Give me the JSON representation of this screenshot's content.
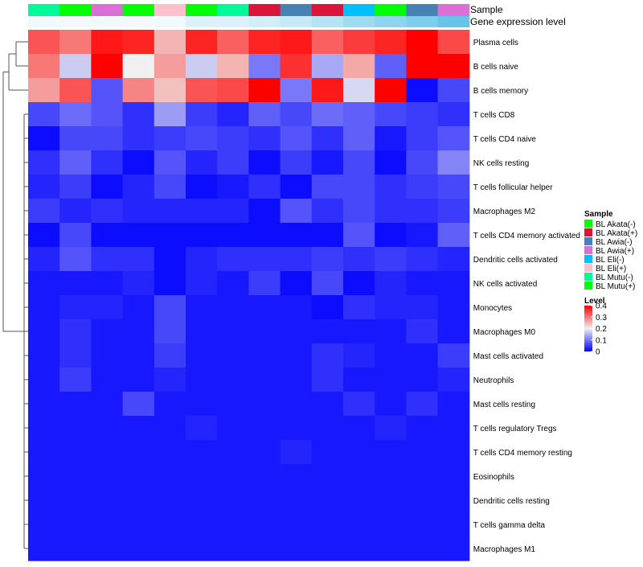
{
  "chart_data": {
    "type": "heatmap",
    "annotation_labels": [
      "Sample",
      "Gene expression level"
    ],
    "rows": [
      "Plasma cells",
      "B cells naive",
      "B cells memory",
      "T cells CD8",
      "T cells CD4 naive",
      "NK cells resting",
      "T cells follicular helper",
      "Macrophages M2",
      "T cells CD4 memory activated",
      "Dendritic cells activated",
      "NK cells activated",
      "Monocytes",
      "Macrophages M0",
      "Mast cells activated",
      "Neutrophils",
      "Mast cells resting",
      "T cells regulatory  Tregs",
      "T cells CD4 memory resting",
      "Eosinophils",
      "Dendritic cells resting",
      "T cells gamma delta",
      "Macrophages M1"
    ],
    "column_samples": [
      "BL Mutu(-)",
      "BL Akata(-)",
      "BL Awia(+)",
      "BL Mutu(+)",
      "BL Eli(+)",
      "BL Akata(-)",
      "BL Mutu(-)",
      "BL Akata(+)",
      "BL Awia(-)",
      "BL Akata(+)",
      "BL Eli(-)",
      "BL Mutu(+)",
      "BL Awia(-)",
      "BL Awia(+)"
    ],
    "gene_expression_level_colors": [
      "#f2f9fc",
      "#f2f9fc",
      "#f2f9fc",
      "#f2f9fc",
      "#f2f9fc",
      "#dcf1f9",
      "#dcf1f9",
      "#d2eef8",
      "#c5e9f6",
      "#b5e3f4",
      "#9fdaf1",
      "#8fd4ef",
      "#7dcdec",
      "#66c4e9"
    ],
    "values": [
      [
        0.33,
        0.3,
        0.38,
        0.37,
        0.25,
        0.37,
        0.32,
        0.37,
        0.38,
        0.32,
        0.35,
        0.37,
        0.4,
        0.34
      ],
      [
        0.3,
        0.17,
        0.4,
        0.2,
        0.27,
        0.17,
        0.25,
        0.1,
        0.36,
        0.14,
        0.26,
        0.08,
        0.4,
        0.4
      ],
      [
        0.27,
        0.33,
        0.07,
        0.29,
        0.24,
        0.33,
        0.34,
        0.4,
        0.1,
        0.38,
        0.18,
        0.4,
        0.01,
        0.06
      ],
      [
        0.06,
        0.09,
        0.07,
        0.04,
        0.13,
        0.05,
        0.03,
        0.08,
        0.06,
        0.09,
        0.08,
        0.06,
        0.05,
        0.04
      ],
      [
        0.01,
        0.06,
        0.06,
        0.04,
        0.05,
        0.06,
        0.05,
        0.04,
        0.07,
        0.04,
        0.08,
        0.02,
        0.05,
        0.07
      ],
      [
        0.04,
        0.08,
        0.04,
        0.01,
        0.07,
        0.03,
        0.05,
        0.01,
        0.05,
        0.02,
        0.06,
        0.01,
        0.06,
        0.11
      ],
      [
        0.03,
        0.05,
        0.01,
        0.03,
        0.06,
        0.01,
        0.02,
        0.04,
        0.01,
        0.06,
        0.06,
        0.04,
        0.05,
        0.06
      ],
      [
        0.05,
        0.03,
        0.04,
        0.03,
        0.03,
        0.03,
        0.03,
        0.01,
        0.07,
        0.04,
        0.06,
        0.04,
        0.04,
        0.05
      ],
      [
        0.01,
        0.06,
        0.01,
        0.01,
        0.01,
        0.01,
        0.01,
        0.01,
        0.01,
        0.01,
        0.07,
        0.01,
        0.02,
        0.08
      ],
      [
        0.03,
        0.07,
        0.04,
        0.04,
        0.01,
        0.03,
        0.04,
        0.04,
        0.04,
        0.05,
        0.04,
        0.05,
        0.04,
        0.03
      ],
      [
        0.02,
        0.02,
        0.02,
        0.03,
        0.01,
        0.03,
        0.02,
        0.05,
        0.01,
        0.06,
        0.01,
        0.03,
        0.02,
        0.02
      ],
      [
        0.02,
        0.03,
        0.03,
        0.02,
        0.06,
        0.02,
        0.02,
        0.02,
        0.02,
        0.01,
        0.04,
        0.03,
        0.03,
        0.02
      ],
      [
        0.02,
        0.04,
        0.02,
        0.02,
        0.06,
        0.02,
        0.02,
        0.02,
        0.02,
        0.02,
        0.02,
        0.02,
        0.04,
        0.02
      ],
      [
        0.02,
        0.04,
        0.02,
        0.02,
        0.05,
        0.02,
        0.02,
        0.02,
        0.02,
        0.04,
        0.03,
        0.02,
        0.02,
        0.05
      ],
      [
        0.02,
        0.05,
        0.02,
        0.02,
        0.03,
        0.02,
        0.02,
        0.02,
        0.02,
        0.04,
        0.02,
        0.02,
        0.02,
        0.03
      ],
      [
        0.02,
        0.02,
        0.02,
        0.06,
        0.02,
        0.02,
        0.02,
        0.02,
        0.02,
        0.02,
        0.04,
        0.02,
        0.04,
        0.02
      ],
      [
        0.02,
        0.02,
        0.02,
        0.02,
        0.02,
        0.03,
        0.02,
        0.02,
        0.02,
        0.02,
        0.02,
        0.03,
        0.02,
        0.02
      ],
      [
        0.02,
        0.02,
        0.02,
        0.02,
        0.02,
        0.02,
        0.02,
        0.02,
        0.03,
        0.02,
        0.02,
        0.02,
        0.02,
        0.02
      ],
      [
        0.02,
        0.02,
        0.02,
        0.02,
        0.02,
        0.02,
        0.02,
        0.02,
        0.02,
        0.02,
        0.02,
        0.02,
        0.02,
        0.02
      ],
      [
        0.02,
        0.02,
        0.02,
        0.02,
        0.02,
        0.02,
        0.02,
        0.02,
        0.02,
        0.02,
        0.02,
        0.02,
        0.02,
        0.02
      ],
      [
        0.02,
        0.02,
        0.02,
        0.02,
        0.02,
        0.02,
        0.02,
        0.02,
        0.02,
        0.02,
        0.02,
        0.02,
        0.02,
        0.02
      ],
      [
        0.02,
        0.02,
        0.02,
        0.02,
        0.02,
        0.02,
        0.02,
        0.02,
        0.02,
        0.02,
        0.02,
        0.02,
        0.02,
        0.02
      ]
    ],
    "color_scale": {
      "stops": [
        {
          "value": 0,
          "color": "#0000ff"
        },
        {
          "value": 0.2,
          "color": "#f0f0f0"
        },
        {
          "value": 0.4,
          "color": "#ff0000"
        }
      ]
    },
    "legend": {
      "sample_title": "Sample",
      "sample_entries": [
        {
          "label": "BL Akata(-)",
          "color": "#00ff00"
        },
        {
          "label": "BL Akata(+)",
          "color": "#dc143c"
        },
        {
          "label": "BL Awia(-)",
          "color": "#4682b4"
        },
        {
          "label": "BL Awia(+)",
          "color": "#da70d6"
        },
        {
          "label": "BL Eli(-)",
          "color": "#00bfff"
        },
        {
          "label": "BL Eli(+)",
          "color": "#ffc0cb"
        },
        {
          "label": "BL Mutu(-)",
          "color": "#00fa9a"
        },
        {
          "label": "BL Mutu(+)",
          "color": "#00ff00"
        }
      ],
      "level_title": "Level",
      "level_ticks": [
        "0.4",
        "0.3",
        "0.2",
        "0.1",
        "0"
      ],
      "level_tick_values": [
        0.4,
        0.3,
        0.2,
        0.1,
        0
      ],
      "placement": "right"
    },
    "dendrogram": "rows"
  }
}
